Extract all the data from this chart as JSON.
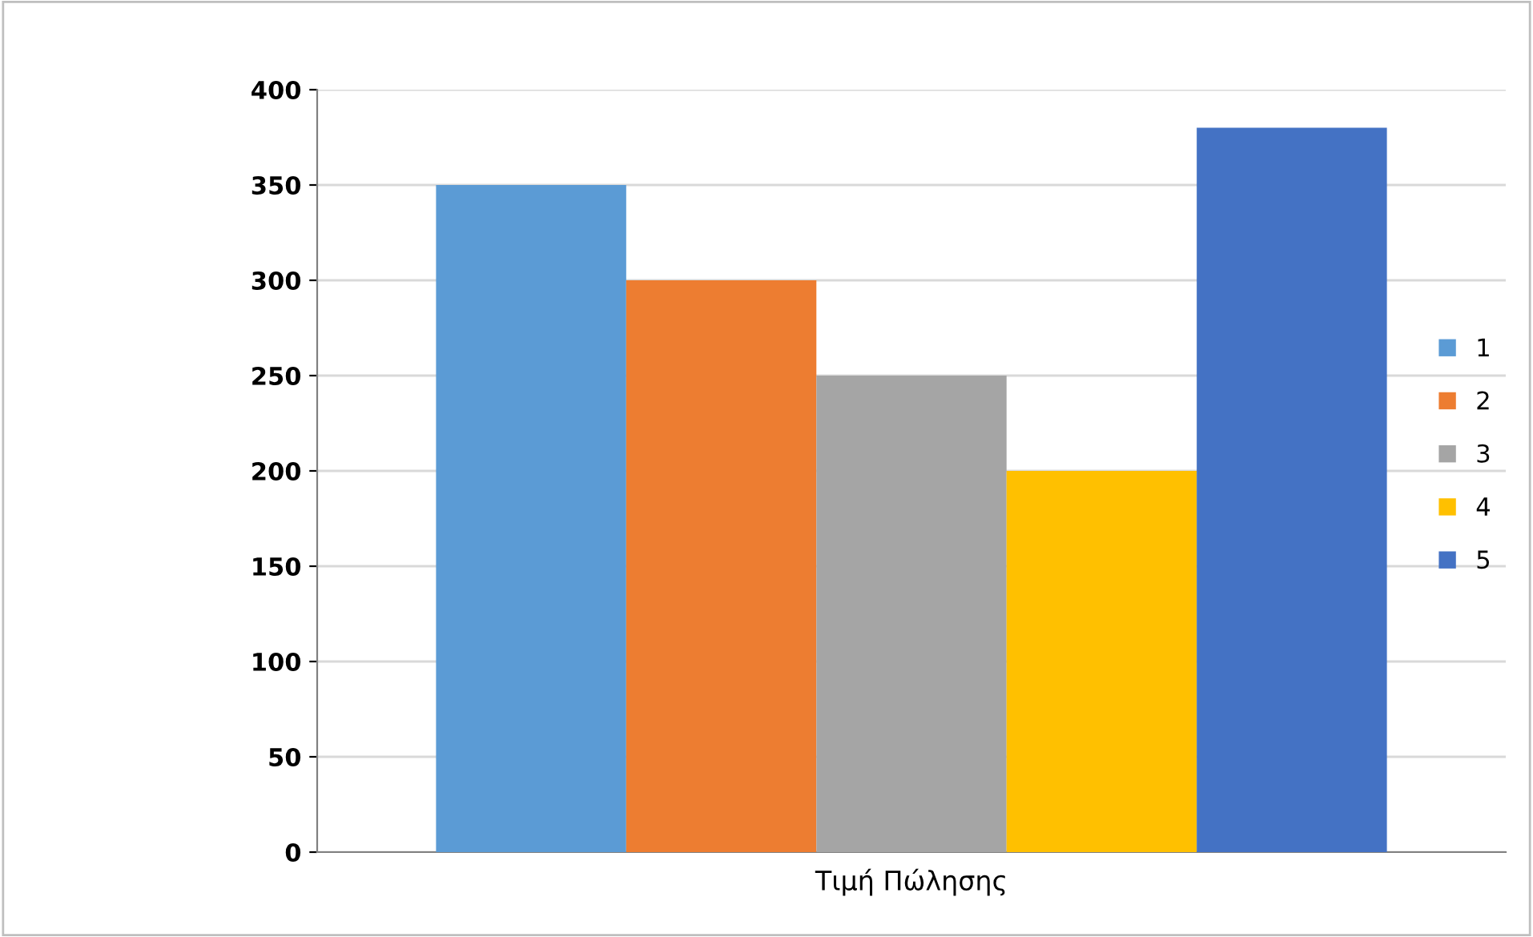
{
  "chart_data": {
    "type": "bar",
    "xlabel": "Τιμή Πώλησης",
    "categories": [
      null
    ],
    "series": [
      {
        "name": "1",
        "color": "#5b9bd5",
        "values": [
          350
        ]
      },
      {
        "name": "2",
        "color": "#ed7d31",
        "values": [
          300
        ]
      },
      {
        "name": "3",
        "color": "#a5a5a5",
        "values": [
          250
        ]
      },
      {
        "name": "4",
        "color": "#ffc000",
        "values": [
          200
        ]
      },
      {
        "name": "5",
        "color": "#4472c4",
        "values": [
          380
        ]
      }
    ],
    "ylim": [
      0,
      400
    ],
    "yticks": [
      0,
      50,
      100,
      150,
      200,
      250,
      300,
      350,
      400
    ],
    "grid": "y",
    "legend": "right"
  }
}
